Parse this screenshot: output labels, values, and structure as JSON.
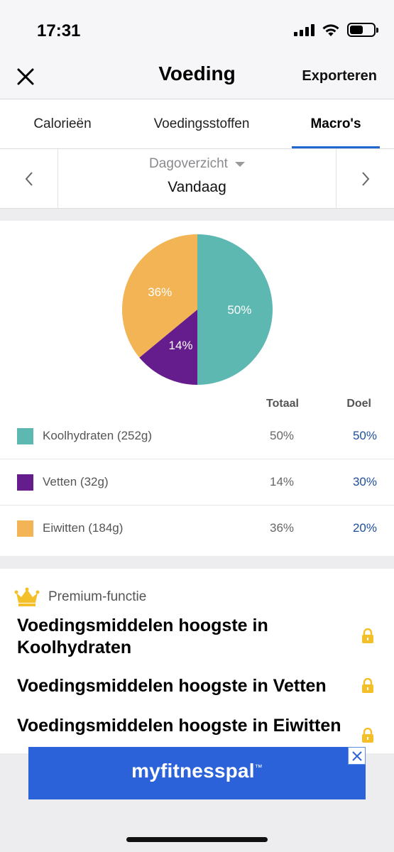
{
  "status_bar": {
    "time": "17:31"
  },
  "nav": {
    "title": "Voeding",
    "action": "Exporteren"
  },
  "tabs": [
    {
      "label": "Calorieën",
      "active": false
    },
    {
      "label": "Voedingsstoffen",
      "active": false
    },
    {
      "label": "Macro's",
      "active": true
    }
  ],
  "date_nav": {
    "period": "Dagoverzicht",
    "value": "Vandaag"
  },
  "chart_data": {
    "type": "pie",
    "slices": [
      {
        "label": "Koolhydraten",
        "value": 50,
        "display": "50%",
        "color": "#5db8b1"
      },
      {
        "label": "Vetten",
        "value": 14,
        "display": "14%",
        "color": "#651c8c"
      },
      {
        "label": "Eiwitten",
        "value": 36,
        "display": "36%",
        "color": "#f2b455"
      }
    ]
  },
  "macros": {
    "header_total": "Totaal",
    "header_goal": "Doel",
    "rows": [
      {
        "label": "Koolhydraten (252g)",
        "total": "50%",
        "goal": "50%",
        "color": "#5db8b1"
      },
      {
        "label": "Vetten (32g)",
        "total": "14%",
        "goal": "30%",
        "color": "#651c8c"
      },
      {
        "label": "Eiwitten (184g)",
        "total": "36%",
        "goal": "20%",
        "color": "#f2b455"
      }
    ]
  },
  "premium": {
    "label": "Premium-functie",
    "items": [
      "Voedingsmiddelen hoogste in Koolhydraten",
      "Voedingsmiddelen hoogste in Vetten",
      "Voedingsmiddelen hoogste in Eiwitten"
    ]
  },
  "ad": {
    "brand": "myfitnesspal",
    "brand_mark": "™"
  }
}
